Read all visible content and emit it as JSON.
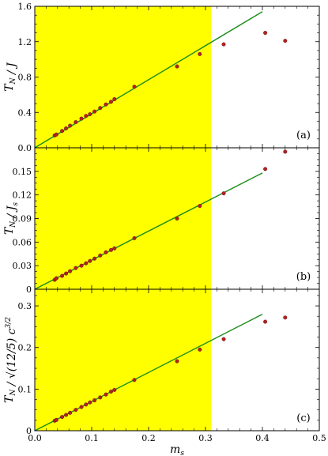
{
  "chart_data": [
    {
      "type": "scatter",
      "panel_label": "(a)",
      "ylabel": "T_N / J",
      "xlim": [
        0.0,
        0.5
      ],
      "ylim": [
        0.0,
        1.6
      ],
      "yticks": [
        "0.0",
        "0.4",
        "0.8",
        "1.2",
        "1.6"
      ],
      "shaded_region": {
        "x_from": 0.0,
        "x_to": 0.31,
        "color": "#ffff00"
      },
      "fit_line": {
        "x": [
          0.0,
          0.4
        ],
        "y": [
          0.0,
          1.54
        ],
        "color": "#1a8c1a"
      },
      "points": {
        "color": "#b22222",
        "x": [
          0.035,
          0.038,
          0.048,
          0.055,
          0.062,
          0.072,
          0.082,
          0.09,
          0.097,
          0.105,
          0.115,
          0.125,
          0.134,
          0.14,
          0.175,
          0.25,
          0.29,
          0.332,
          0.405,
          0.44
        ],
        "y": [
          0.14,
          0.15,
          0.19,
          0.22,
          0.25,
          0.29,
          0.33,
          0.36,
          0.38,
          0.41,
          0.45,
          0.49,
          0.52,
          0.55,
          0.69,
          0.92,
          1.06,
          1.17,
          1.3,
          1.21
        ]
      }
    },
    {
      "type": "scatter",
      "panel_label": "(b)",
      "ylabel": "T_N / J_s",
      "xlim": [
        0.0,
        0.5
      ],
      "ylim": [
        0.0,
        0.18
      ],
      "yticks": [
        "0",
        "0.03",
        "0.06",
        "0.09",
        "0.12",
        "0.15"
      ],
      "shaded_region": {
        "x_from": 0.0,
        "x_to": 0.31,
        "color": "#ffff00"
      },
      "fit_line": {
        "x": [
          0.0,
          0.4
        ],
        "y": [
          0.0,
          0.148
        ],
        "color": "#1a8c1a"
      },
      "points": {
        "color": "#b22222",
        "x": [
          0.035,
          0.038,
          0.048,
          0.055,
          0.062,
          0.072,
          0.082,
          0.09,
          0.097,
          0.105,
          0.115,
          0.125,
          0.134,
          0.14,
          0.175,
          0.25,
          0.29,
          0.332,
          0.405,
          0.44
        ],
        "y": [
          0.012,
          0.014,
          0.017,
          0.02,
          0.023,
          0.027,
          0.03,
          0.033,
          0.036,
          0.039,
          0.043,
          0.047,
          0.05,
          0.052,
          0.065,
          0.09,
          0.106,
          0.122,
          0.153,
          0.175
        ]
      }
    },
    {
      "type": "scatter",
      "panel_label": "(c)",
      "ylabel": "T_N / √(12/5) c^{3/2}",
      "xlabel": "m_s",
      "xlim": [
        0.0,
        0.5
      ],
      "ylim": [
        0.0,
        0.34
      ],
      "xticks": [
        "0.0",
        "0.1",
        "0.2",
        "0.3",
        "0.4",
        "0.5"
      ],
      "yticks": [
        "0",
        "0.1",
        "0.2",
        "0.3"
      ],
      "shaded_region": {
        "x_from": 0.0,
        "x_to": 0.31,
        "color": "#ffff00"
      },
      "fit_line": {
        "x": [
          0.0,
          0.4
        ],
        "y": [
          0.0,
          0.28
        ],
        "color": "#1a8c1a"
      },
      "points": {
        "color": "#b22222",
        "x": [
          0.035,
          0.038,
          0.048,
          0.055,
          0.062,
          0.072,
          0.082,
          0.09,
          0.097,
          0.105,
          0.115,
          0.125,
          0.134,
          0.14,
          0.175,
          0.25,
          0.29,
          0.332,
          0.405,
          0.44
        ],
        "y": [
          0.024,
          0.026,
          0.033,
          0.038,
          0.043,
          0.05,
          0.057,
          0.063,
          0.068,
          0.073,
          0.08,
          0.087,
          0.094,
          0.098,
          0.122,
          0.167,
          0.195,
          0.22,
          0.262,
          0.272
        ]
      }
    }
  ]
}
